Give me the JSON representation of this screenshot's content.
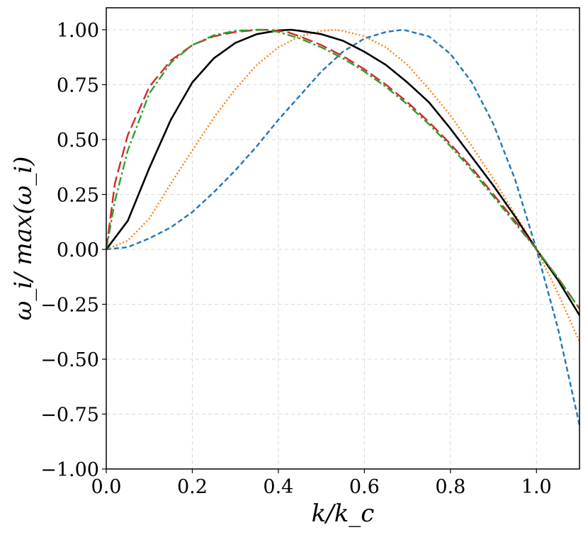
{
  "chart_data": {
    "type": "line",
    "title": "",
    "xlabel": "k/k_c",
    "ylabel": "ω_i/ max(ω_i)",
    "xlim": [
      0.0,
      1.1
    ],
    "ylim": [
      -1.0,
      1.1
    ],
    "grid": true,
    "x_ticks": [
      0.0,
      0.2,
      0.4,
      0.6,
      0.8,
      1.0
    ],
    "x_tick_labels": [
      "0.0",
      "0.2",
      "0.4",
      "0.6",
      "0.8",
      "1.0"
    ],
    "y_ticks": [
      -1.0,
      -0.75,
      -0.5,
      -0.25,
      0.0,
      0.25,
      0.5,
      0.75,
      1.0
    ],
    "y_tick_labels": [
      "−1.00",
      "−0.75",
      "−0.50",
      "−0.25",
      "0.00",
      "0.25",
      "0.50",
      "0.75",
      "1.00"
    ],
    "series": [
      {
        "color": "#1f77b4",
        "linestyle": "dashed",
        "x": [
          0.0,
          0.05,
          0.1,
          0.15,
          0.2,
          0.25,
          0.3,
          0.35,
          0.4,
          0.45,
          0.5,
          0.55,
          0.6,
          0.65,
          0.69,
          0.75,
          0.8,
          0.85,
          0.9,
          0.95,
          1.0,
          1.05,
          1.1
        ],
        "y": [
          0.0,
          0.01,
          0.05,
          0.1,
          0.17,
          0.26,
          0.36,
          0.47,
          0.59,
          0.7,
          0.81,
          0.9,
          0.96,
          0.99,
          1.0,
          0.97,
          0.89,
          0.76,
          0.57,
          0.32,
          0.0,
          -0.36,
          -0.8
        ]
      },
      {
        "color": "#ff7f0e",
        "linestyle": "dotted",
        "x": [
          0.0,
          0.05,
          0.1,
          0.15,
          0.2,
          0.25,
          0.3,
          0.35,
          0.4,
          0.45,
          0.5,
          0.53,
          0.55,
          0.6,
          0.65,
          0.7,
          0.75,
          0.8,
          0.85,
          0.9,
          0.95,
          1.0,
          1.05,
          1.1
        ],
        "y": [
          0.0,
          0.04,
          0.14,
          0.3,
          0.45,
          0.6,
          0.73,
          0.84,
          0.92,
          0.97,
          0.995,
          1.0,
          0.995,
          0.97,
          0.92,
          0.84,
          0.73,
          0.61,
          0.47,
          0.32,
          0.16,
          0.0,
          -0.2,
          -0.42
        ]
      },
      {
        "color": "#000000",
        "linestyle": "solid",
        "x": [
          0.0,
          0.05,
          0.1,
          0.15,
          0.2,
          0.25,
          0.3,
          0.35,
          0.4,
          0.43,
          0.45,
          0.5,
          0.55,
          0.6,
          0.65,
          0.7,
          0.75,
          0.8,
          0.85,
          0.9,
          0.95,
          1.0,
          1.05,
          1.1
        ],
        "y": [
          0.0,
          0.13,
          0.37,
          0.59,
          0.76,
          0.87,
          0.94,
          0.98,
          0.997,
          1.0,
          0.995,
          0.98,
          0.95,
          0.9,
          0.84,
          0.76,
          0.67,
          0.55,
          0.42,
          0.29,
          0.15,
          0.0,
          -0.14,
          -0.3
        ]
      },
      {
        "color": "#d62728",
        "linestyle": "long-dashed",
        "x": [
          0.0,
          0.02,
          0.05,
          0.1,
          0.15,
          0.2,
          0.25,
          0.3,
          0.35,
          0.38,
          0.42,
          0.45,
          0.5,
          0.55,
          0.6,
          0.65,
          0.7,
          0.75,
          0.8,
          0.85,
          0.9,
          0.95,
          1.0,
          1.05,
          1.1
        ],
        "y": [
          0.0,
          0.3,
          0.52,
          0.74,
          0.86,
          0.93,
          0.97,
          0.99,
          0.999,
          1.0,
          0.99,
          0.97,
          0.93,
          0.88,
          0.82,
          0.75,
          0.67,
          0.58,
          0.48,
          0.37,
          0.25,
          0.13,
          0.0,
          -0.13,
          -0.27
        ]
      },
      {
        "color": "#2ca02c",
        "linestyle": "dash-dot",
        "x": [
          0.0,
          0.02,
          0.05,
          0.1,
          0.15,
          0.2,
          0.25,
          0.3,
          0.35,
          0.37,
          0.4,
          0.45,
          0.5,
          0.55,
          0.6,
          0.65,
          0.7,
          0.75,
          0.8,
          0.85,
          0.9,
          0.95,
          1.0,
          1.05,
          1.1
        ],
        "y": [
          0.0,
          0.22,
          0.45,
          0.71,
          0.85,
          0.93,
          0.975,
          0.995,
          1.0,
          1.0,
          0.99,
          0.96,
          0.92,
          0.87,
          0.81,
          0.74,
          0.66,
          0.57,
          0.47,
          0.36,
          0.24,
          0.12,
          0.0,
          -0.13,
          -0.27
        ]
      }
    ]
  }
}
